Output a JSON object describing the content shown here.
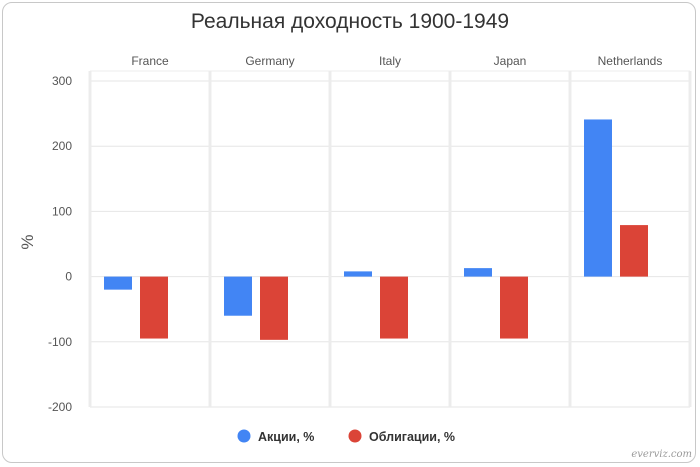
{
  "chart_data": {
    "type": "bar",
    "title": "Реальная доходность 1900-1949",
    "ylabel": "%",
    "ylim": [
      -200,
      300
    ],
    "yticks": [
      -200,
      -100,
      0,
      100,
      200,
      300
    ],
    "categories": [
      "France",
      "Germany",
      "Italy",
      "Japan",
      "Netherlands"
    ],
    "series": [
      {
        "name": "Акции, %",
        "color": "#4285f4",
        "values": [
          -20,
          -60,
          8,
          13,
          241
        ]
      },
      {
        "name": "Облигации, %",
        "color": "#db4437",
        "values": [
          -95,
          -97,
          -95,
          -95,
          79
        ]
      }
    ],
    "grid": true,
    "legend": "bottom"
  },
  "credit": "everviz.com"
}
